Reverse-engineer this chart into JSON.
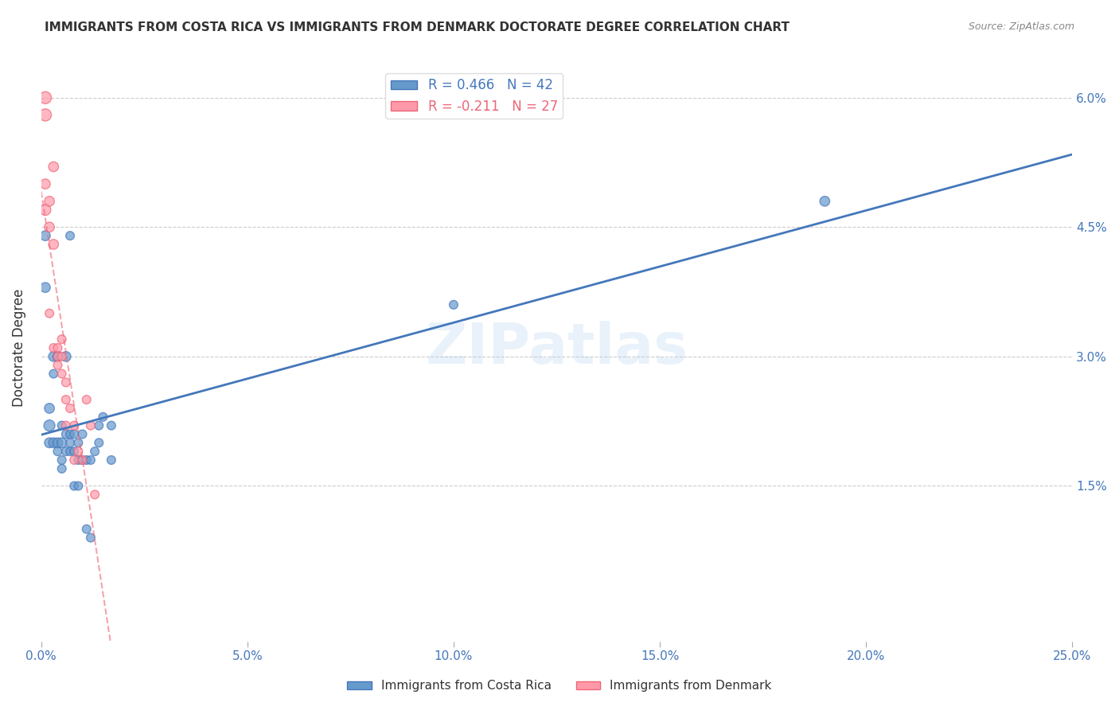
{
  "title": "IMMIGRANTS FROM COSTA RICA VS IMMIGRANTS FROM DENMARK DOCTORATE DEGREE CORRELATION CHART",
  "source": "Source: ZipAtlas.com",
  "ylabel": "Doctorate Degree",
  "ytick_labels": [
    "1.5%",
    "3.0%",
    "4.5%",
    "6.0%"
  ],
  "ytick_values": [
    0.015,
    0.03,
    0.045,
    0.06
  ],
  "xmin": 0.0,
  "xmax": 0.25,
  "ymin": -0.003,
  "ymax": 0.065,
  "legend_label_blue": "R = 0.466   N = 42",
  "legend_label_pink": "R = -0.211   N = 27",
  "legend_label_blue_series": "Immigrants from Costa Rica",
  "legend_label_pink_series": "Immigrants from Denmark",
  "watermark": "ZIPatlas",
  "blue_color": "#6699CC",
  "pink_color": "#FF99AA",
  "blue_line_color": "#4477BB",
  "pink_line_color": "#EE6677",
  "blue_scatter": [
    [
      0.001,
      0.044
    ],
    [
      0.001,
      0.038
    ],
    [
      0.007,
      0.044
    ],
    [
      0.012,
      0.009
    ],
    [
      0.002,
      0.024
    ],
    [
      0.002,
      0.022
    ],
    [
      0.002,
      0.02
    ],
    [
      0.003,
      0.03
    ],
    [
      0.003,
      0.028
    ],
    [
      0.003,
      0.02
    ],
    [
      0.004,
      0.03
    ],
    [
      0.004,
      0.02
    ],
    [
      0.004,
      0.019
    ],
    [
      0.005,
      0.02
    ],
    [
      0.005,
      0.018
    ],
    [
      0.005,
      0.017
    ],
    [
      0.005,
      0.022
    ],
    [
      0.006,
      0.03
    ],
    [
      0.006,
      0.019
    ],
    [
      0.006,
      0.021
    ],
    [
      0.007,
      0.021
    ],
    [
      0.007,
      0.02
    ],
    [
      0.007,
      0.019
    ],
    [
      0.008,
      0.021
    ],
    [
      0.008,
      0.019
    ],
    [
      0.008,
      0.015
    ],
    [
      0.009,
      0.02
    ],
    [
      0.009,
      0.018
    ],
    [
      0.009,
      0.015
    ],
    [
      0.01,
      0.018
    ],
    [
      0.01,
      0.021
    ],
    [
      0.011,
      0.018
    ],
    [
      0.011,
      0.01
    ],
    [
      0.012,
      0.018
    ],
    [
      0.013,
      0.019
    ],
    [
      0.014,
      0.02
    ],
    [
      0.014,
      0.022
    ],
    [
      0.015,
      0.023
    ],
    [
      0.017,
      0.022
    ],
    [
      0.017,
      0.018
    ],
    [
      0.19,
      0.048
    ],
    [
      0.1,
      0.036
    ]
  ],
  "pink_scatter": [
    [
      0.001,
      0.06
    ],
    [
      0.001,
      0.058
    ],
    [
      0.001,
      0.05
    ],
    [
      0.001,
      0.047
    ],
    [
      0.002,
      0.048
    ],
    [
      0.002,
      0.045
    ],
    [
      0.002,
      0.035
    ],
    [
      0.003,
      0.052
    ],
    [
      0.003,
      0.043
    ],
    [
      0.003,
      0.031
    ],
    [
      0.004,
      0.031
    ],
    [
      0.004,
      0.03
    ],
    [
      0.004,
      0.029
    ],
    [
      0.005,
      0.032
    ],
    [
      0.005,
      0.03
    ],
    [
      0.005,
      0.028
    ],
    [
      0.006,
      0.027
    ],
    [
      0.006,
      0.022
    ],
    [
      0.006,
      0.025
    ],
    [
      0.007,
      0.024
    ],
    [
      0.008,
      0.022
    ],
    [
      0.008,
      0.018
    ],
    [
      0.009,
      0.019
    ],
    [
      0.01,
      0.018
    ],
    [
      0.011,
      0.025
    ],
    [
      0.012,
      0.022
    ],
    [
      0.013,
      0.014
    ]
  ],
  "blue_sizes": [
    80,
    80,
    60,
    60,
    80,
    100,
    80,
    80,
    60,
    80,
    80,
    80,
    60,
    80,
    60,
    60,
    60,
    80,
    60,
    60,
    60,
    60,
    60,
    60,
    60,
    60,
    60,
    60,
    60,
    60,
    60,
    60,
    60,
    60,
    60,
    60,
    60,
    60,
    60,
    60,
    80,
    60
  ],
  "pink_sizes": [
    120,
    120,
    80,
    100,
    80,
    80,
    60,
    80,
    80,
    60,
    60,
    60,
    60,
    60,
    60,
    60,
    60,
    60,
    60,
    60,
    60,
    60,
    60,
    60,
    60,
    60,
    60
  ]
}
